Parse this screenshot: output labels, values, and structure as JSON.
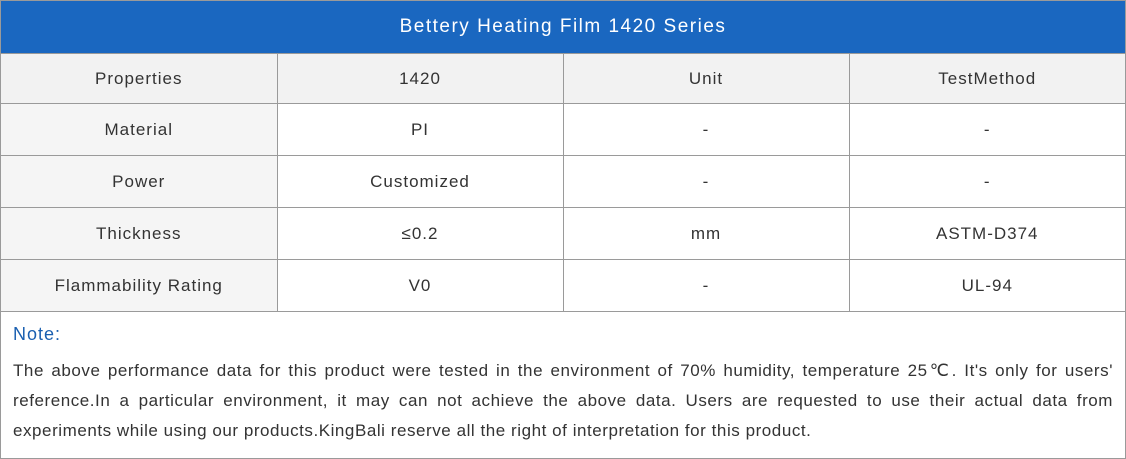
{
  "header": {
    "title": "Bettery Heating Film 1420 Series"
  },
  "table": {
    "columns": [
      "Properties",
      "1420",
      "Unit",
      "TestMethod"
    ],
    "rows": [
      [
        "Material",
        "PI",
        "-",
        "-"
      ],
      [
        "Power",
        "Customized",
        "-",
        "-"
      ],
      [
        "Thickness",
        "≤0.2",
        "mm",
        "ASTM-D374"
      ],
      [
        "Flammability Rating",
        "V0",
        "-",
        "UL-94"
      ]
    ]
  },
  "note": {
    "label": "Note:",
    "text": "The above performance data for this product were tested in the environment of 70% humidity, temperature 25℃. It's only for users' reference.In a particular environment, it may can not achieve the above data. Users are requested to use their actual data from experiments while using our products.KingBali reserve all the right of interpretation for this product."
  }
}
